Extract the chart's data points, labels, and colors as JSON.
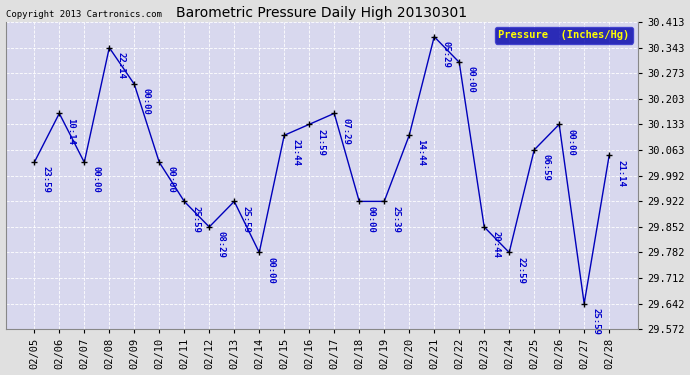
{
  "title": "Barometric Pressure Daily High 20130301",
  "copyright": "Copyright 2013 Cartronics.com",
  "legend_label": "Pressure  (Inches/Hg)",
  "dates": [
    "02/05",
    "02/06",
    "02/07",
    "02/08",
    "02/09",
    "02/10",
    "02/11",
    "02/12",
    "02/13",
    "02/14",
    "02/15",
    "02/16",
    "02/17",
    "02/18",
    "02/19",
    "02/20",
    "02/21",
    "02/22",
    "02/23",
    "02/24",
    "02/25",
    "02/26",
    "02/27",
    "02/28"
  ],
  "values": [
    30.029,
    30.163,
    30.029,
    30.343,
    30.243,
    30.029,
    29.922,
    29.852,
    29.922,
    29.782,
    30.103,
    30.133,
    30.163,
    29.922,
    29.922,
    30.103,
    30.373,
    30.303,
    29.852,
    29.782,
    30.063,
    30.133,
    29.642,
    30.048
  ],
  "annotations": [
    "23:59",
    "10:14",
    "00:00",
    "22:14",
    "00:00",
    "00:00",
    "25:59",
    "08:29",
    "25:59",
    "00:00",
    "21:44",
    "21:59",
    "07:29",
    "00:00",
    "25:39",
    "14:44",
    "05:29",
    "00:00",
    "20:44",
    "22:59",
    "06:59",
    "00:00",
    "25:59",
    "21:14"
  ],
  "ylim_min": 29.572,
  "ylim_max": 30.413,
  "yticks": [
    29.572,
    29.642,
    29.712,
    29.782,
    29.852,
    29.922,
    29.992,
    30.063,
    30.133,
    30.203,
    30.273,
    30.343,
    30.413
  ],
  "line_color": "#0000bb",
  "marker_color": "#000000",
  "fig_bg_color": "#e0e0e0",
  "plot_bg_color": "#d8d8ee",
  "grid_color": "#ffffff",
  "title_color": "#000000",
  "annotation_color": "#0000cc",
  "legend_bg": "#0000aa",
  "legend_text_color": "#ffff00",
  "copyright_color": "#000000"
}
